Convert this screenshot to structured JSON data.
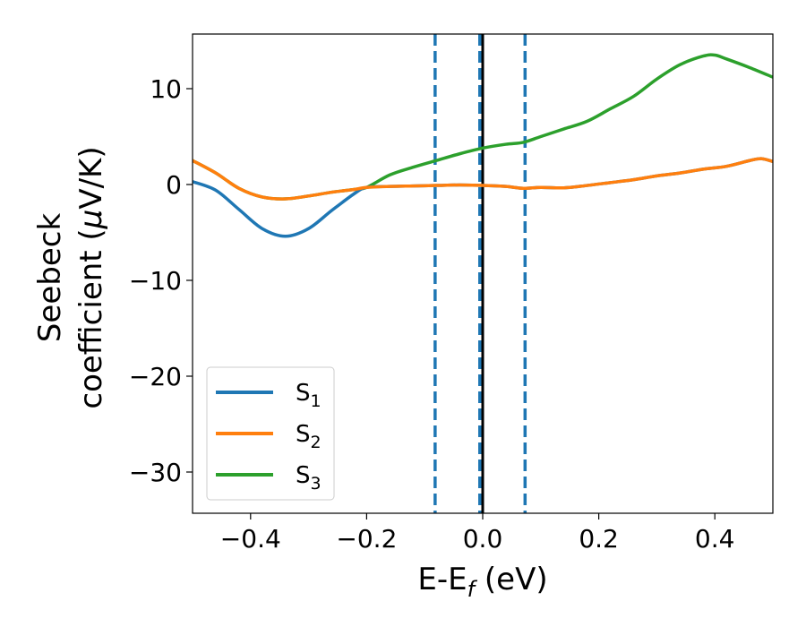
{
  "chart_data": {
    "type": "line",
    "xlabel": {
      "main": "E-E",
      "sub": "f",
      "tail": " (eV)"
    },
    "ylabel": {
      "line1": "Seebeck",
      "line2_pre": "coefficient  (",
      "line2_mu": "μ",
      "line2_post": "V/K)"
    },
    "xlim": [
      -0.5,
      0.5
    ],
    "ylim": [
      -34.3,
      15.7
    ],
    "xticks": [
      -0.4,
      -0.2,
      0.0,
      0.2,
      0.4
    ],
    "xtick_labels": [
      "−0.4",
      "−0.2",
      "0.0",
      "0.2",
      "0.4"
    ],
    "yticks": [
      -30,
      -20,
      -10,
      0,
      10
    ],
    "ytick_labels": [
      "−30",
      "−20",
      "−10",
      "0",
      "10"
    ],
    "vlines": [
      {
        "x": -0.082,
        "style": "dashed",
        "color": "#1f77b4"
      },
      {
        "x": -0.005,
        "style": "dashed",
        "color": "#1f77b4"
      },
      {
        "x": 0.0,
        "style": "solid",
        "color": "#000000"
      },
      {
        "x": 0.073,
        "style": "dashed",
        "color": "#1f77b4"
      }
    ],
    "legend_position": "lower-left",
    "series": [
      {
        "name": "S",
        "sub": "1",
        "color": "#1f77b4",
        "x": [
          -0.5,
          -0.46,
          -0.42,
          -0.38,
          -0.34,
          -0.3,
          -0.26,
          -0.22,
          -0.2,
          -0.16,
          -0.12,
          -0.08,
          -0.04,
          0.0,
          0.04,
          0.07,
          0.1,
          0.14,
          0.18,
          0.22,
          0.26,
          0.3,
          0.34,
          0.38,
          0.42,
          0.46,
          0.48,
          0.5
        ],
        "y": [
          0.3,
          -0.6,
          -2.6,
          -4.6,
          -5.4,
          -4.6,
          -2.7,
          -0.9,
          -0.3,
          -0.2,
          -0.15,
          -0.1,
          -0.05,
          -0.1,
          -0.2,
          -0.4,
          -0.3,
          -0.35,
          -0.1,
          0.2,
          0.5,
          0.9,
          1.2,
          1.6,
          1.9,
          2.5,
          2.7,
          2.4
        ]
      },
      {
        "name": "S",
        "sub": "2",
        "color": "#ff7f0e",
        "x": [
          -0.5,
          -0.46,
          -0.42,
          -0.38,
          -0.34,
          -0.3,
          -0.26,
          -0.22,
          -0.2,
          -0.16,
          -0.12,
          -0.08,
          -0.04,
          0.0,
          0.04,
          0.07,
          0.1,
          0.14,
          0.18,
          0.22,
          0.26,
          0.3,
          0.34,
          0.38,
          0.42,
          0.46,
          0.48,
          0.5
        ],
        "y": [
          2.5,
          1.2,
          -0.4,
          -1.3,
          -1.5,
          -1.2,
          -0.8,
          -0.5,
          -0.3,
          -0.2,
          -0.15,
          -0.1,
          -0.05,
          -0.1,
          -0.2,
          -0.4,
          -0.3,
          -0.35,
          -0.1,
          0.2,
          0.5,
          0.9,
          1.2,
          1.6,
          1.9,
          2.5,
          2.7,
          2.4
        ]
      },
      {
        "name": "S",
        "sub": "3",
        "color": "#2ca02c",
        "x": [
          -0.5,
          -0.46,
          -0.42,
          -0.38,
          -0.34,
          -0.3,
          -0.26,
          -0.22,
          -0.2,
          -0.16,
          -0.12,
          -0.08,
          -0.04,
          0.0,
          0.04,
          0.07,
          0.1,
          0.14,
          0.18,
          0.22,
          0.26,
          0.3,
          0.34,
          0.38,
          0.4,
          0.42,
          0.46,
          0.5
        ],
        "y": [
          2.5,
          1.2,
          -0.4,
          -1.3,
          -1.5,
          -1.2,
          -0.8,
          -0.5,
          -0.3,
          1.0,
          1.8,
          2.5,
          3.2,
          3.8,
          4.2,
          4.4,
          5.0,
          5.8,
          6.6,
          7.9,
          9.2,
          11.0,
          12.5,
          13.4,
          13.5,
          13.1,
          12.2,
          11.2
        ]
      }
    ]
  }
}
